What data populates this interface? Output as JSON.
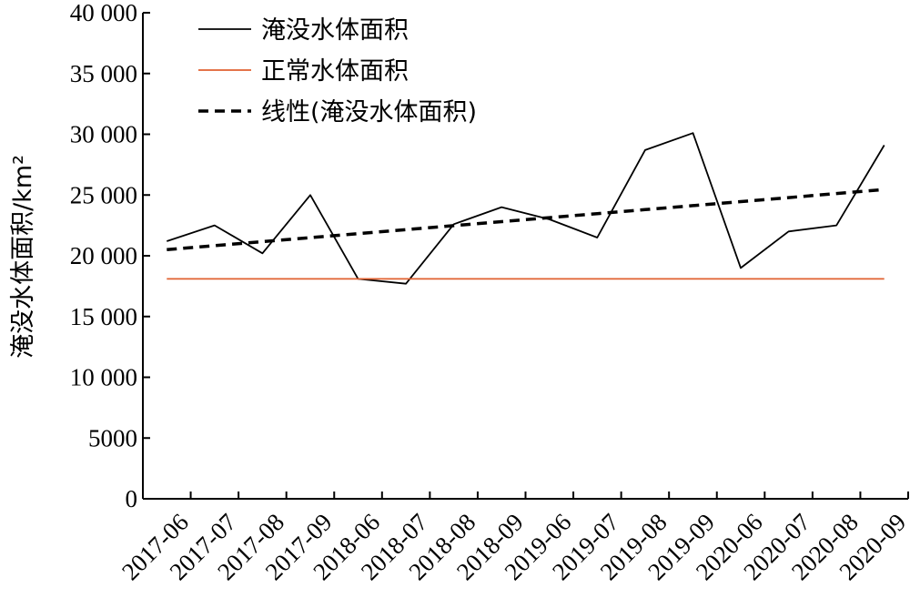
{
  "chart_data": {
    "type": "line",
    "categories": [
      "2017-06",
      "2017-07",
      "2017-08",
      "2017-09",
      "2018-06",
      "2018-07",
      "2018-08",
      "2018-09",
      "2019-06",
      "2019-07",
      "2019-08",
      "2019-09",
      "2020-06",
      "2020-07",
      "2020-08",
      "2020-09"
    ],
    "ylabel": "淹没水体面积/km²",
    "ylim": [
      0,
      40000
    ],
    "yticks": [
      0,
      5000,
      10000,
      15000,
      20000,
      25000,
      30000,
      35000,
      40000
    ],
    "ytick_labels": [
      "0",
      "5000",
      "10 000",
      "15 000",
      "20 000",
      "25 000",
      "30 000",
      "35 000",
      "40 000"
    ],
    "grid": false,
    "legend_position": "top-left",
    "series": [
      {
        "name": "淹没水体面积",
        "color": "#000000",
        "style": "solid",
        "values": [
          21200,
          22500,
          20200,
          25000,
          18100,
          17700,
          22600,
          24000,
          23000,
          21500,
          28700,
          30100,
          19000,
          22000,
          22500,
          29100
        ]
      },
      {
        "name": "正常水体面积",
        "color": "#e06030",
        "style": "solid",
        "values": [
          18100,
          18100,
          18100,
          18100,
          18100,
          18100,
          18100,
          18100,
          18100,
          18100,
          18100,
          18100,
          18100,
          18100,
          18100,
          18100
        ]
      },
      {
        "name": "线性(淹没水体面积)",
        "color": "#000000",
        "style": "dashed",
        "values": [
          20500,
          20830,
          21160,
          21490,
          21820,
          22150,
          22480,
          22810,
          23140,
          23470,
          23800,
          24130,
          24460,
          24790,
          25120,
          25450
        ]
      }
    ]
  }
}
